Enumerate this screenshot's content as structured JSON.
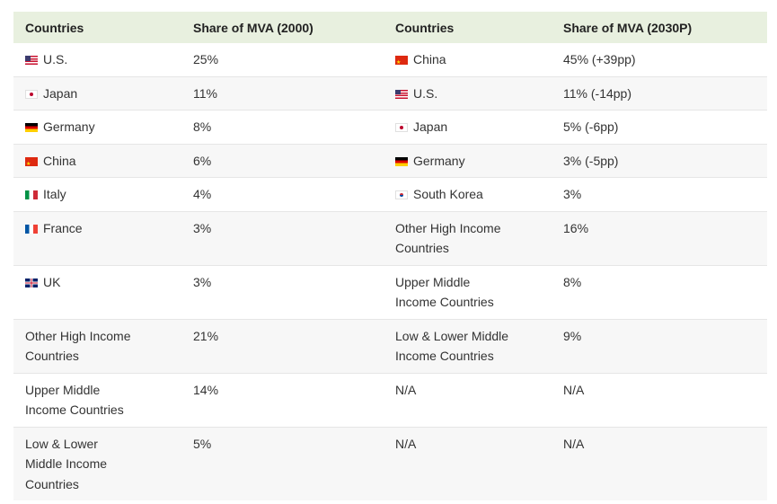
{
  "headers": [
    "Countries",
    "Share of MVA (2000)",
    "Countries",
    "Share of MVA (2030P)"
  ],
  "rows": [
    {
      "c1": "U.S.",
      "f1": "us",
      "c2": "25%",
      "c3": "China",
      "f3": "cn",
      "c4": "45% (+39pp)"
    },
    {
      "c1": "Japan",
      "f1": "jp",
      "c2": "11%",
      "c3": "U.S.",
      "f3": "us",
      "c4": "11% (-14pp)"
    },
    {
      "c1": "Germany",
      "f1": "de",
      "c2": "8%",
      "c3": "Japan",
      "f3": "jp",
      "c4": "5% (-6pp)"
    },
    {
      "c1": "China",
      "f1": "cn",
      "c2": "6%",
      "c3": "Germany",
      "f3": "de",
      "c4": "3% (-5pp)"
    },
    {
      "c1": "Italy",
      "f1": "it",
      "c2": "4%",
      "c3": "South Korea",
      "f3": "kr",
      "c4": "3%"
    },
    {
      "c1": "France",
      "f1": "fr",
      "c2": "3%",
      "c3": "Other High Income Countries",
      "f3": null,
      "c4": "16%"
    },
    {
      "c1": "UK",
      "f1": "uk",
      "c2": "3%",
      "c3": "Upper Middle Income Countries",
      "f3": null,
      "c4": "8%"
    },
    {
      "c1": "Other High Income Countries",
      "f1": null,
      "c2": "21%",
      "c3": "Low & Lower Middle Income Countries",
      "f3": null,
      "c4": "9%"
    },
    {
      "c1": "Upper Middle Income Countries",
      "f1": null,
      "c2": "14%",
      "c3": "N/A",
      "f3": null,
      "c4": "N/A"
    },
    {
      "c1": "Low & Lower Middle Income Countries",
      "f1": null,
      "c2": "5%",
      "c3": "N/A",
      "f3": null,
      "c4": "N/A"
    }
  ],
  "colors": {
    "header_bg": "#e8f0df",
    "alt_row_bg": "#f7f7f7",
    "text": "#333333"
  }
}
